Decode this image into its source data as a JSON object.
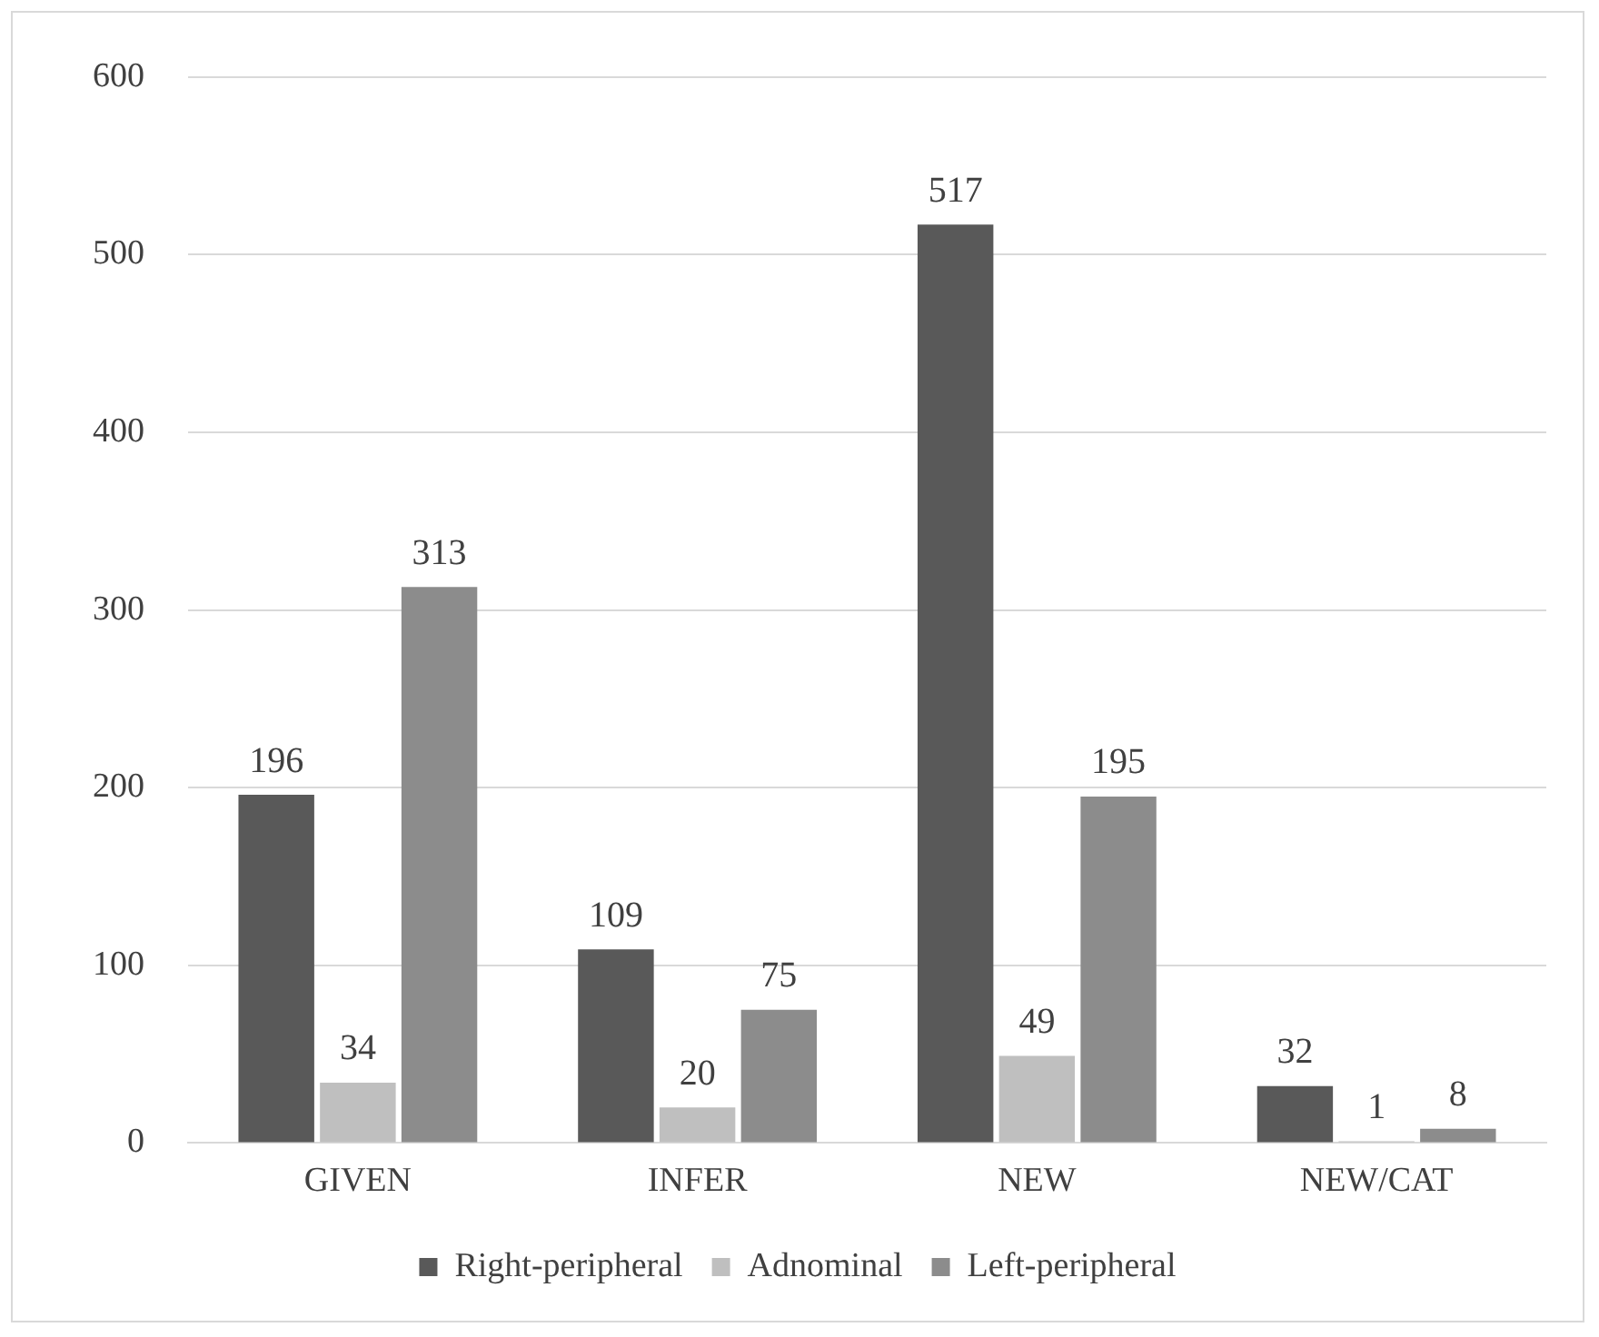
{
  "chart_data": {
    "type": "bar",
    "categories": [
      "GIVEN",
      "INFER",
      "NEW",
      "NEW/CAT"
    ],
    "series": [
      {
        "name": "Right-peripheral",
        "color": "#595959",
        "values": [
          196,
          109,
          517,
          32
        ]
      },
      {
        "name": "Adnominal",
        "color": "#bfbfbf",
        "values": [
          34,
          20,
          49,
          1
        ]
      },
      {
        "name": "Left-peripheral",
        "color": "#8c8c8c",
        "values": [
          313,
          75,
          195,
          8
        ]
      }
    ],
    "ylim": [
      0,
      600
    ],
    "yticks": [
      0,
      100,
      200,
      300,
      400,
      500,
      600
    ],
    "grid": "y",
    "legend": "bottom",
    "data_labels": true
  }
}
